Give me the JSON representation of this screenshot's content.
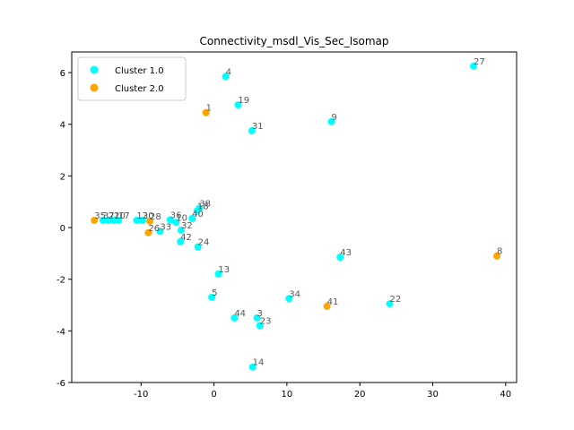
{
  "chart_data": {
    "type": "scatter",
    "title": "Connectivity_msdl_Vis_Sec_Isomap",
    "xlabel": "",
    "ylabel": "",
    "xlim": [
      -19.5,
      41.5
    ],
    "ylim": [
      -6.0,
      6.8
    ],
    "xticks": [
      -10,
      0,
      10,
      20,
      30,
      40
    ],
    "yticks": [
      -6,
      -4,
      -2,
      0,
      2,
      4,
      6
    ],
    "grid": false,
    "legend_position": "top-left",
    "series": [
      {
        "name": "Cluster 1.0",
        "color": "#00ffff",
        "points": [
          {
            "label": "4",
            "x": 1.6,
            "y": 5.85
          },
          {
            "label": "27",
            "x": 35.6,
            "y": 6.25
          },
          {
            "label": "19",
            "x": 3.3,
            "y": 4.75
          },
          {
            "label": "9",
            "x": 16.1,
            "y": 4.1
          },
          {
            "label": "31",
            "x": 5.2,
            "y": 3.75
          },
          {
            "label": "38",
            "x": -2.0,
            "y": 0.75
          },
          {
            "label": "18",
            "x": -2.3,
            "y": 0.65
          },
          {
            "label": "36",
            "x": -6.0,
            "y": 0.3
          },
          {
            "label": "40",
            "x": -3.0,
            "y": 0.35
          },
          {
            "label": "10",
            "x": -5.2,
            "y": 0.2
          },
          {
            "label": "32",
            "x": -4.5,
            "y": -0.1
          },
          {
            "label": "12",
            "x": -10.6,
            "y": 0.28
          },
          {
            "label": "30",
            "x": -9.8,
            "y": 0.28
          },
          {
            "label": "37",
            "x": -15.2,
            "y": 0.28
          },
          {
            "label": "21",
            "x": -14.5,
            "y": 0.28
          },
          {
            "label": "20",
            "x": -13.7,
            "y": 0.28
          },
          {
            "label": "17",
            "x": -13.1,
            "y": 0.28
          },
          {
            "label": "33",
            "x": -7.4,
            "y": -0.15
          },
          {
            "label": "42",
            "x": -4.6,
            "y": -0.55
          },
          {
            "label": "24",
            "x": -2.2,
            "y": -0.75
          },
          {
            "label": "43",
            "x": 17.3,
            "y": -1.15
          },
          {
            "label": "13",
            "x": 0.6,
            "y": -1.8
          },
          {
            "label": "5",
            "x": -0.3,
            "y": -2.7
          },
          {
            "label": "34",
            "x": 10.3,
            "y": -2.75
          },
          {
            "label": "22",
            "x": 24.1,
            "y": -2.95
          },
          {
            "label": "44",
            "x": 2.8,
            "y": -3.5
          },
          {
            "label": "3",
            "x": 5.9,
            "y": -3.5
          },
          {
            "label": "23",
            "x": 6.3,
            "y": -3.8
          },
          {
            "label": "14",
            "x": 5.3,
            "y": -5.4
          }
        ]
      },
      {
        "name": "Cluster 2.0",
        "color": "#ffa500",
        "points": [
          {
            "label": "1",
            "x": -1.1,
            "y": 4.45
          },
          {
            "label": "35",
            "x": -16.4,
            "y": 0.28
          },
          {
            "label": "28",
            "x": -8.8,
            "y": 0.25
          },
          {
            "label": "26",
            "x": -9.0,
            "y": -0.2
          },
          {
            "label": "41",
            "x": 15.5,
            "y": -3.05
          },
          {
            "label": "8",
            "x": 38.8,
            "y": -1.1
          }
        ]
      }
    ]
  }
}
